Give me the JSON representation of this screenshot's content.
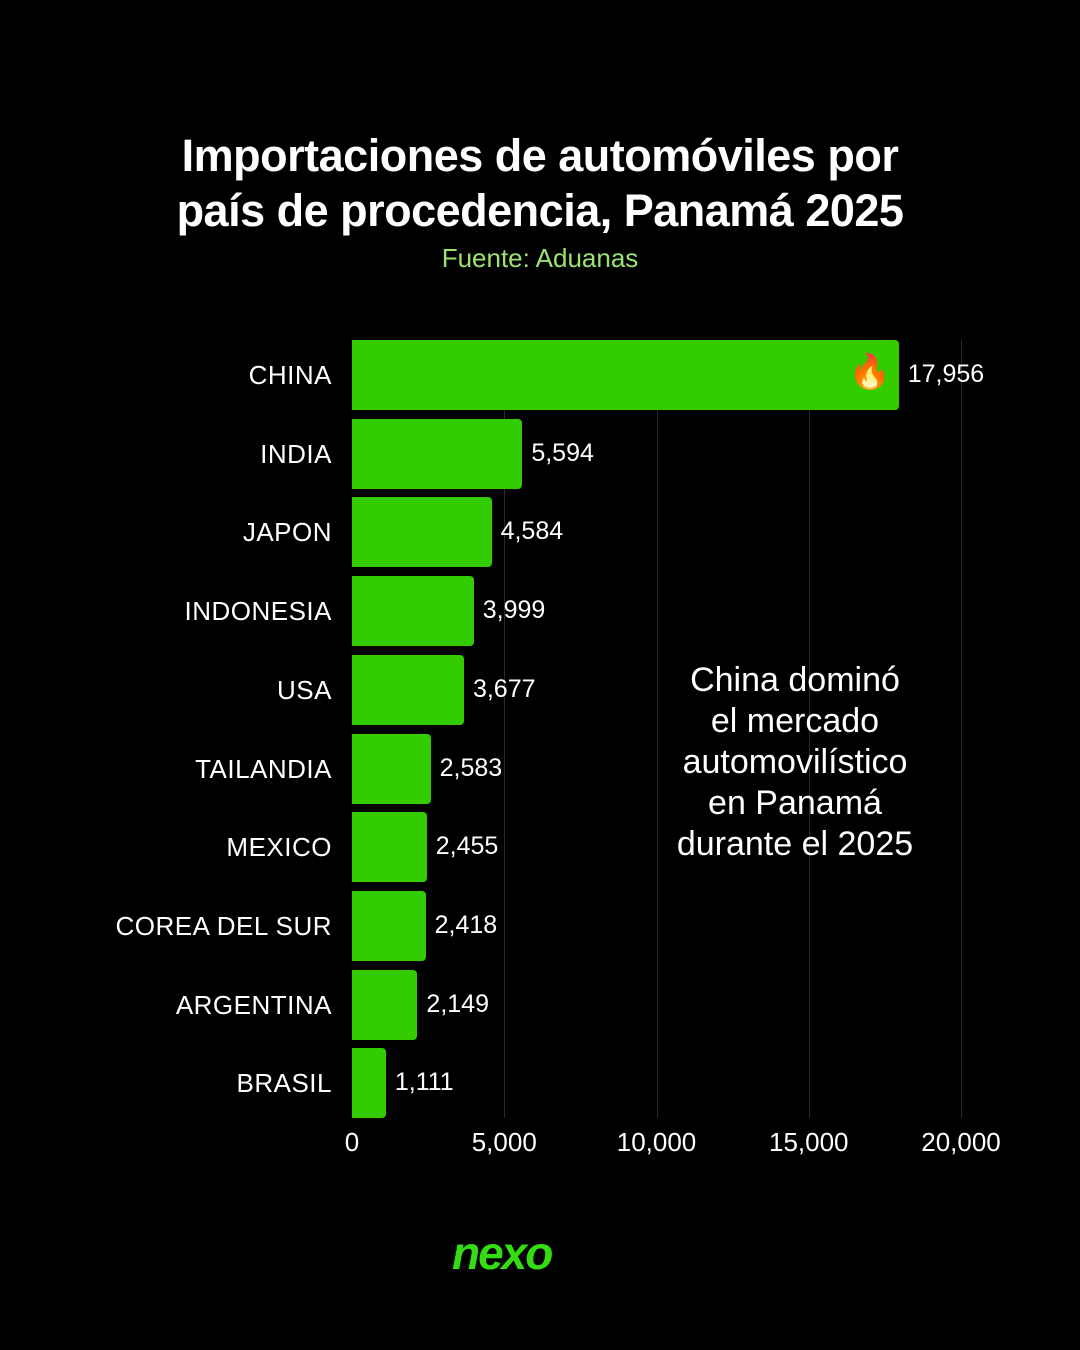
{
  "chart_data": {
    "type": "bar",
    "orientation": "horizontal",
    "title": "Importaciones de automóviles por país de procedencia, Panamá 2025",
    "subtitle": "Fuente: Aduanas",
    "categories": [
      "CHINA",
      "INDIA",
      "JAPON",
      "INDONESIA",
      "USA",
      "TAILANDIA",
      "MEXICO",
      "COREA DEL SUR",
      "ARGENTINA",
      "BRASIL"
    ],
    "values": [
      17956,
      5594,
      4584,
      3999,
      3677,
      2583,
      2455,
      2418,
      2149,
      1111
    ],
    "value_labels": [
      "17,956",
      "5,594",
      "4,584",
      "3,999",
      "3,677",
      "2,583",
      "2,455",
      "2,418",
      "2,149",
      "1,111"
    ],
    "xlim": [
      0,
      20000
    ],
    "xticks": [
      0,
      5000,
      10000,
      15000,
      20000
    ],
    "xtick_labels": [
      "0",
      "5,000",
      "10,000",
      "15,000",
      "20,000"
    ],
    "grid": true,
    "annotation": "China dominó el mercado automovilístico en Panamá durante el 2025",
    "highlight_icon": "fire-icon",
    "bar_color": "#33cc00"
  },
  "title_line1": "Importaciones de automóviles por",
  "title_line2": "país de procedencia, Panamá 2025",
  "source": "Fuente: Aduanas",
  "annotation_lines": [
    "China dominó",
    "el mercado",
    "automovilístico",
    "en Panamá",
    "durante el 2025"
  ],
  "brand": "nexo"
}
